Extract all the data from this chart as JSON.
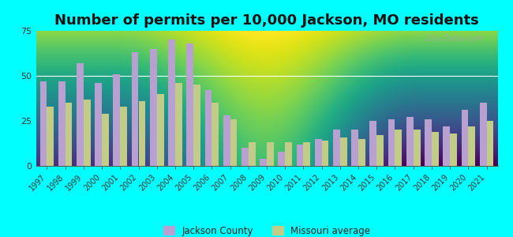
{
  "title": "Number of permits per 10,000 Jackson, MO residents",
  "years": [
    1997,
    1998,
    1999,
    2000,
    2001,
    2002,
    2003,
    2004,
    2005,
    2006,
    2007,
    2008,
    2009,
    2010,
    2011,
    2012,
    2013,
    2014,
    2015,
    2016,
    2017,
    2018,
    2019,
    2020,
    2021
  ],
  "jackson_county": [
    47,
    47,
    57,
    46,
    51,
    63,
    65,
    70,
    68,
    42,
    28,
    10,
    4,
    8,
    12,
    15,
    20,
    20,
    25,
    26,
    27,
    26,
    22,
    31,
    35
  ],
  "missouri_avg": [
    33,
    35,
    37,
    29,
    33,
    36,
    40,
    46,
    45,
    35,
    26,
    13,
    13,
    13,
    13,
    14,
    16,
    15,
    17,
    20,
    20,
    19,
    18,
    22,
    25
  ],
  "jackson_color": "#b8a0d0",
  "missouri_color": "#c0cc88",
  "bg_color": "#00ffff",
  "plot_bg_top": "#f0faf0",
  "plot_bg_bottom": "#c8e8c0",
  "ylim": [
    0,
    75
  ],
  "yticks": [
    0,
    25,
    50,
    75
  ],
  "title_fontsize": 13,
  "legend_labels": [
    "Jackson County",
    "Missouri average"
  ],
  "watermark": "City-Data.com"
}
